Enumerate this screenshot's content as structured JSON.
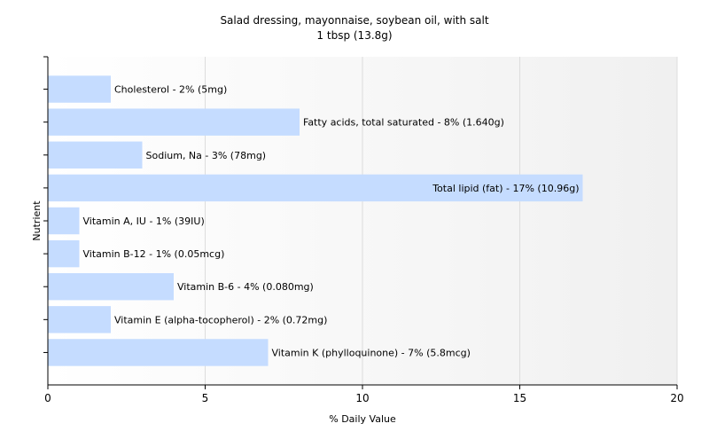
{
  "chart_data": {
    "type": "bar",
    "orientation": "horizontal",
    "title": "Salad dressing, mayonnaise, soybean oil, with salt",
    "subtitle": "1 tbsp (13.8g)",
    "xlabel": "% Daily Value",
    "ylabel": "Nutrient",
    "xlim": [
      0,
      20
    ],
    "xticks": [
      0,
      5,
      10,
      15,
      20
    ],
    "grid": true,
    "bar_color": "#c5dcff",
    "categories": [
      "Cholesterol",
      "Fatty acids, total saturated",
      "Sodium, Na",
      "Total lipid (fat)",
      "Vitamin A, IU",
      "Vitamin B-12",
      "Vitamin B-6",
      "Vitamin E (alpha-tocopherol)",
      "Vitamin K (phylloquinone)"
    ],
    "values": [
      2,
      8,
      3,
      17,
      1,
      1,
      4,
      2,
      7
    ],
    "labels": [
      "Cholesterol - 2% (5mg)",
      "Fatty acids, total saturated - 8% (1.640g)",
      "Sodium, Na - 3% (78mg)",
      "Total lipid (fat) - 17% (10.96g)",
      "Vitamin A, IU - 1% (39IU)",
      "Vitamin B-12 - 1% (0.05mcg)",
      "Vitamin B-6 - 4% (0.080mg)",
      "Vitamin E (alpha-tocopherol) - 2% (0.72mg)",
      "Vitamin K (phylloquinone) - 7% (5.8mcg)"
    ]
  }
}
